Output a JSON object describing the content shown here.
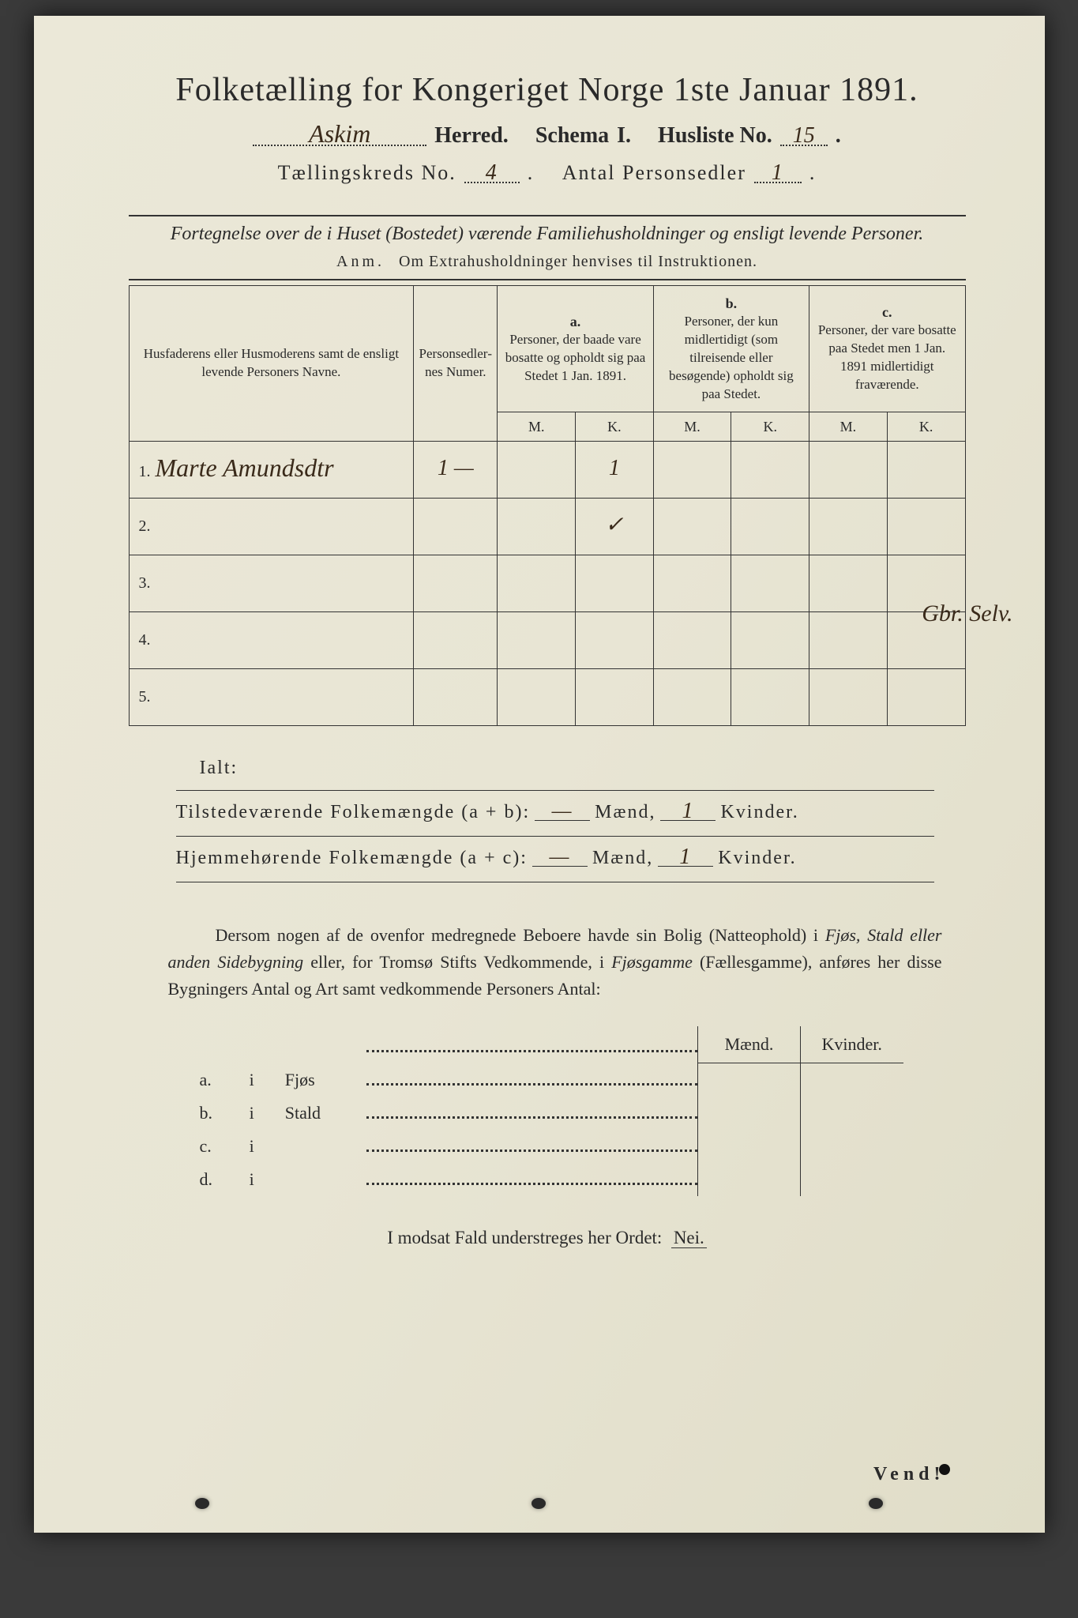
{
  "colors": {
    "paper": "#e8e5d4",
    "ink": "#2a2a2a",
    "handwriting": "#3a2a1a",
    "background": "#3a3a3a"
  },
  "title": "Folketælling for Kongeriget Norge 1ste Januar 1891.",
  "header": {
    "herred_value": "Askim",
    "herred_label": "Herred.",
    "schema_label": "Schema",
    "schema_num": "I.",
    "husliste_label": "Husliste No.",
    "husliste_value": "15",
    "kreds_label": "Tællingskreds No.",
    "kreds_value": "4",
    "antal_label": "Antal Personsedler",
    "antal_value": "1"
  },
  "subtitle": "Fortegnelse over de i Huset (Bostedet) værende Familiehusholdninger og ensligt levende Personer.",
  "anm": {
    "label": "Anm.",
    "text": "Om Extrahusholdninger henvises til Instruktionen."
  },
  "table": {
    "headers": {
      "name": "Husfaderens eller Husmoderens samt de ensligt levende Personers Navne.",
      "num": "Person­sedler­nes Numer.",
      "a_letter": "a.",
      "a_text": "Personer, der baade vare bosatte og opholdt sig paa Stedet 1 Jan. 1891.",
      "b_letter": "b.",
      "b_text": "Personer, der kun midlertidigt (som tilreisende eller besøgende) opholdt sig paa Stedet.",
      "c_letter": "c.",
      "c_text": "Personer, der vare bosatte paa Stedet men 1 Jan. 1891 midlertidigt fraværende.",
      "M": "M.",
      "K": "K."
    },
    "rows": [
      {
        "n": "1.",
        "name": "Marte Amundsdtr",
        "num": "1 —",
        "aM": "",
        "aK": "1",
        "bM": "",
        "bK": "",
        "cM": "",
        "cK": ""
      },
      {
        "n": "2.",
        "name": "",
        "num": "",
        "aM": "",
        "aK": "✓",
        "bM": "",
        "bK": "",
        "cM": "",
        "cK": ""
      },
      {
        "n": "3.",
        "name": "",
        "num": "",
        "aM": "",
        "aK": "",
        "bM": "",
        "bK": "",
        "cM": "",
        "cK": ""
      },
      {
        "n": "4.",
        "name": "",
        "num": "",
        "aM": "",
        "aK": "",
        "bM": "",
        "bK": "",
        "cM": "",
        "cK": ""
      },
      {
        "n": "5.",
        "name": "",
        "num": "",
        "aM": "",
        "aK": "",
        "bM": "",
        "bK": "",
        "cM": "",
        "cK": ""
      }
    ],
    "margin_note": "Gbr. Selv."
  },
  "totals": {
    "ialt": "Ialt:",
    "row1_label": "Tilstedeværende Folkemængde (a + b):",
    "row2_label": "Hjemmehørende Folkemængde (a + c):",
    "maend": "Mænd,",
    "kvinder": "Kvinder.",
    "r1_m": "—",
    "r1_k": "1",
    "r2_m": "—",
    "r2_k": "1"
  },
  "paragraph": {
    "p1": "Dersom nogen af de ovenfor medregnede Beboere havde sin Bolig (Natteophold) i ",
    "i1": "Fjøs, Stald eller anden Sidebygning",
    "p2": " eller, for Tromsø Stifts Vedkommende, i ",
    "i2": "Fjøsgamme",
    "p3": " (Fællesgamme), anføres her disse Bygningers Antal og Art samt vedkommende Personers Antal:"
  },
  "bldg": {
    "maend": "Mænd.",
    "kvinder": "Kvinder.",
    "rows": [
      {
        "l": "a.",
        "i": "i",
        "t": "Fjøs"
      },
      {
        "l": "b.",
        "i": "i",
        "t": "Stald"
      },
      {
        "l": "c.",
        "i": "i",
        "t": ""
      },
      {
        "l": "d.",
        "i": "i",
        "t": ""
      }
    ]
  },
  "nei_line": {
    "text": "I modsat Fald understreges her Ordet:",
    "nei": "Nei."
  },
  "vend": "Vend!"
}
